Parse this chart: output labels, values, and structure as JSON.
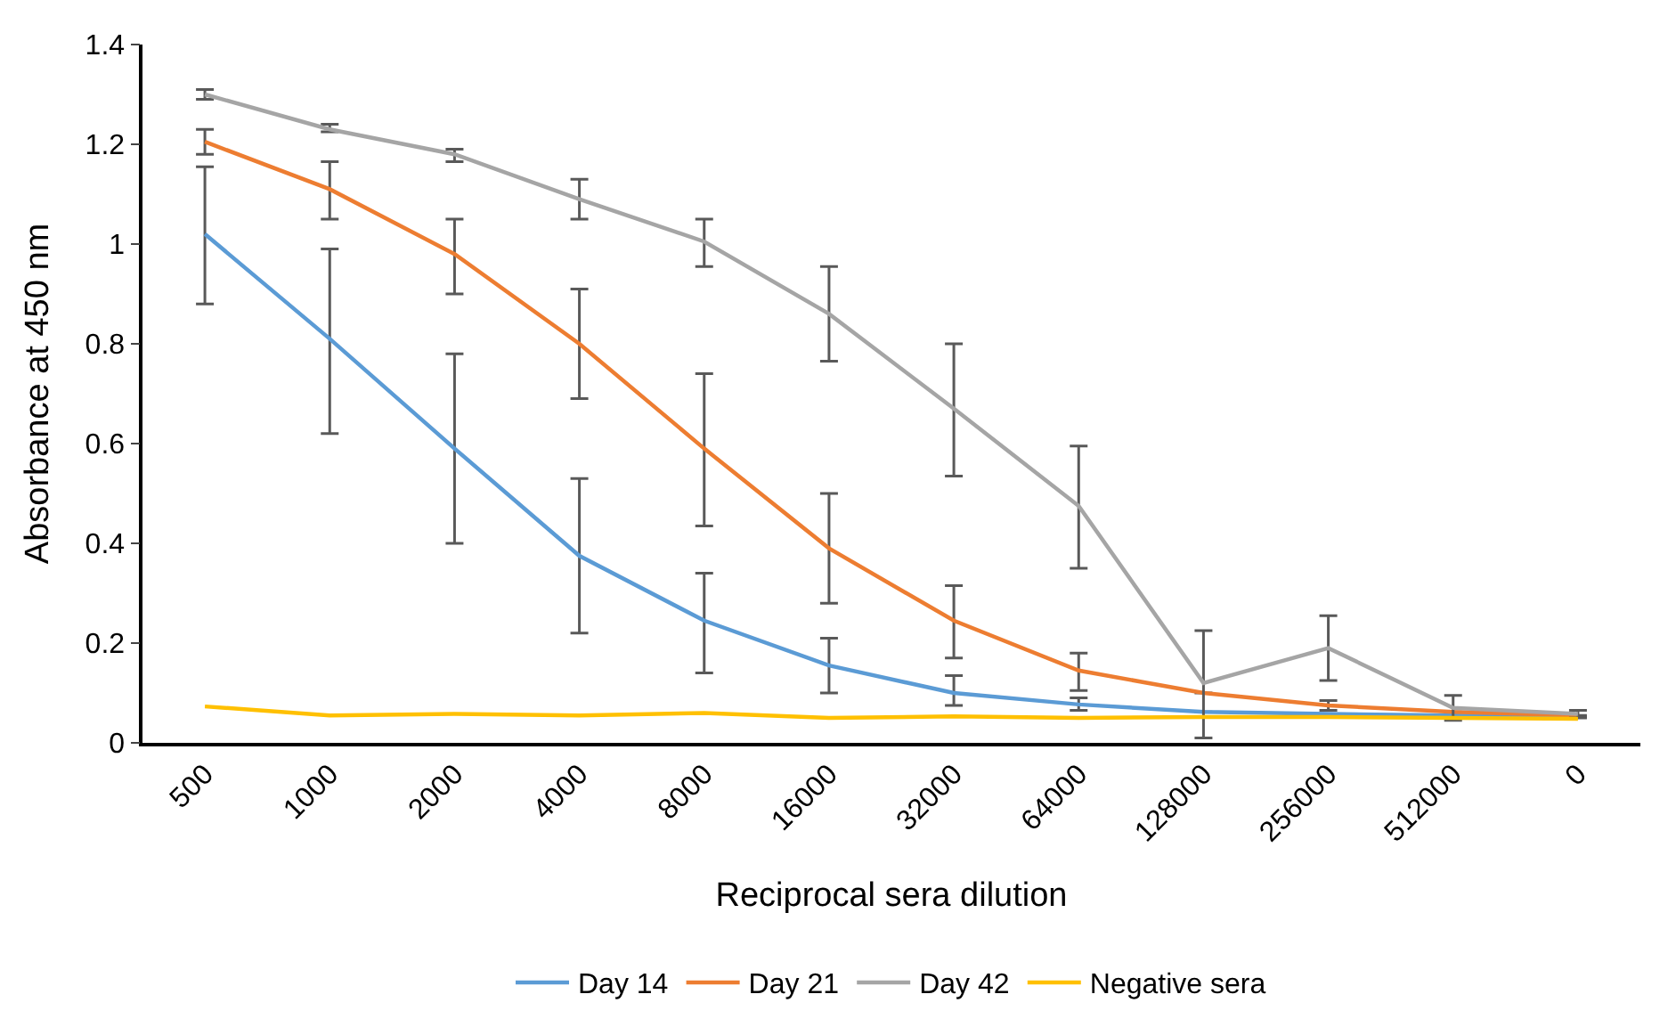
{
  "chart_data": {
    "type": "line",
    "xlabel": "Reciprocal sera dilution",
    "ylabel": "Absorbance at 450 nm",
    "categories": [
      "500",
      "1000",
      "2000",
      "4000",
      "8000",
      "16000",
      "32000",
      "64000",
      "128000",
      "256000",
      "512000",
      "0"
    ],
    "ylim": [
      0,
      1.4
    ],
    "yticks": [
      0,
      0.2,
      0.4,
      0.6,
      0.8,
      1,
      1.2,
      1.4
    ],
    "legend": "bottom",
    "marker": "none",
    "line_style": "solid",
    "series": [
      {
        "name": "Day 14",
        "color": "#5b9bd5",
        "values": [
          1.02,
          0.81,
          0.59,
          0.375,
          0.245,
          0.155,
          0.1,
          0.077,
          0.062,
          0.058,
          0.055,
          0.052
        ],
        "errors": [
          [
            0.88,
            1.155
          ],
          [
            0.62,
            0.99
          ],
          [
            0.4,
            0.78
          ],
          [
            0.22,
            0.53
          ],
          [
            0.14,
            0.34
          ],
          [
            0.1,
            0.21
          ],
          [
            0.075,
            0.135
          ],
          [
            0.065,
            0.09
          ],
          null,
          null,
          null,
          null
        ]
      },
      {
        "name": "Day 21",
        "color": "#ed7d31",
        "values": [
          1.205,
          1.11,
          0.98,
          0.8,
          0.59,
          0.39,
          0.245,
          0.145,
          0.1,
          0.075,
          0.062,
          0.055
        ],
        "errors": [
          [
            1.18,
            1.23
          ],
          [
            1.05,
            1.165
          ],
          [
            0.9,
            1.05
          ],
          [
            0.69,
            0.91
          ],
          [
            0.435,
            0.74
          ],
          [
            0.28,
            0.5
          ],
          [
            0.17,
            0.315
          ],
          [
            0.105,
            0.18
          ],
          null,
          [
            0.065,
            0.085
          ],
          null,
          null
        ]
      },
      {
        "name": "Day 42",
        "color": "#a5a5a5",
        "values": [
          1.3,
          1.23,
          1.18,
          1.09,
          1.005,
          0.86,
          0.67,
          0.475,
          0.12,
          0.19,
          0.07,
          0.058
        ],
        "errors": [
          [
            1.29,
            1.31
          ],
          [
            1.225,
            1.24
          ],
          [
            1.165,
            1.19
          ],
          [
            1.05,
            1.13
          ],
          [
            0.955,
            1.05
          ],
          [
            0.765,
            0.955
          ],
          [
            0.535,
            0.8
          ],
          [
            0.35,
            0.595
          ],
          [
            0.01,
            0.225
          ],
          [
            0.125,
            0.255
          ],
          [
            0.045,
            0.095
          ],
          [
            0.05,
            0.065
          ]
        ]
      },
      {
        "name": "Negative sera",
        "color": "#ffc000",
        "values": [
          0.073,
          0.055,
          0.058,
          0.055,
          0.06,
          0.05,
          0.053,
          0.05,
          0.052,
          0.052,
          0.05,
          0.048
        ]
      }
    ]
  }
}
